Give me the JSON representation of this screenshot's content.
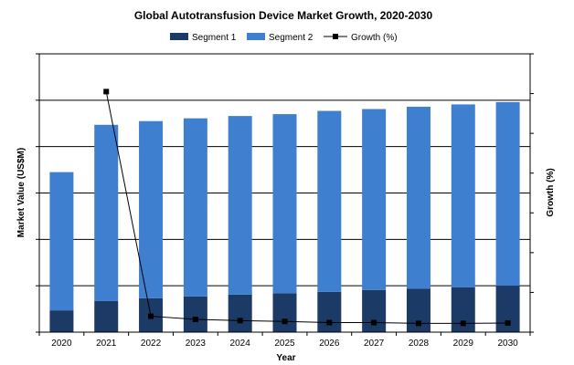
{
  "chart_data": {
    "type": "bar",
    "title": "Global Autotransfusion Device Market Growth, 2020-2030",
    "xlabel": "Year",
    "ylabel": "Market Value (US$M)",
    "y2label": "Growth (%)",
    "categories": [
      "2020",
      "2021",
      "2022",
      "2023",
      "2024",
      "2025",
      "2026",
      "2027",
      "2028",
      "2029",
      "2030"
    ],
    "stacked": true,
    "ylim": [
      0,
      6
    ],
    "y2lim": [
      0,
      7
    ],
    "grid": true,
    "legend_position": "top",
    "series": [
      {
        "name": "Segment 1",
        "kind": "bar",
        "color": "#1c3a66",
        "values": [
          0.47,
          0.67,
          0.73,
          0.77,
          0.81,
          0.84,
          0.87,
          0.91,
          0.94,
          0.97,
          1.0
        ]
      },
      {
        "name": "Segment 2",
        "kind": "bar",
        "color": "#3f7fd0",
        "values": [
          2.98,
          3.8,
          3.82,
          3.84,
          3.85,
          3.86,
          3.9,
          3.9,
          3.92,
          3.94,
          3.96
        ]
      },
      {
        "name": "Growth (%)",
        "kind": "line",
        "axis": "secondary",
        "color": "#000000",
        "values": [
          null,
          6.05,
          0.4,
          0.32,
          0.29,
          0.27,
          0.24,
          0.24,
          0.22,
          0.22,
          0.23
        ]
      }
    ]
  }
}
